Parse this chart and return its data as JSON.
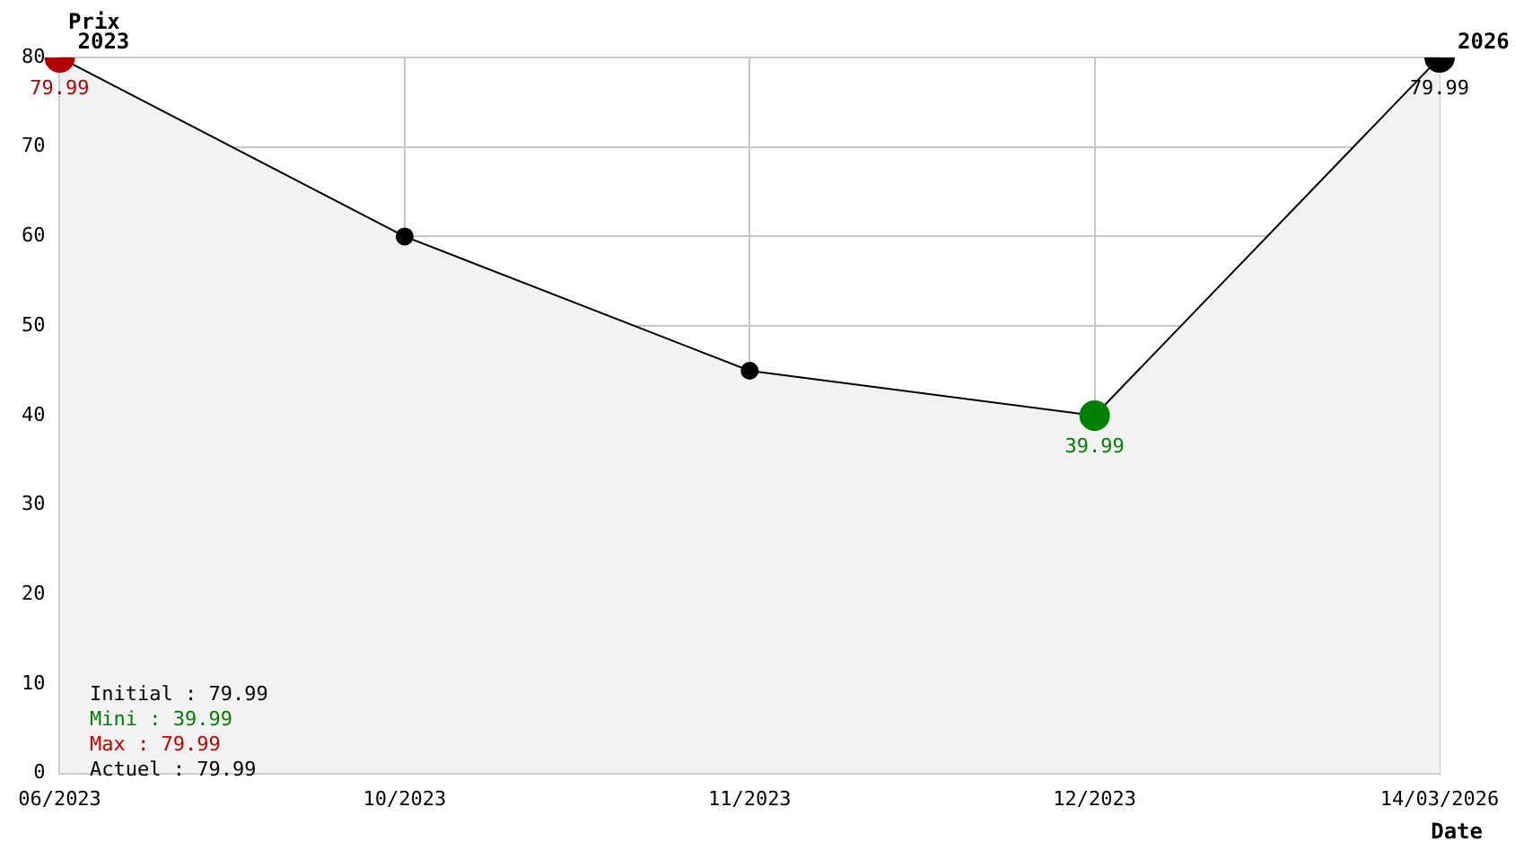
{
  "chart_data": {
    "type": "area",
    "xlabel": "Date",
    "ylabel": "Prix",
    "categories": [
      "06/2023",
      "10/2023",
      "11/2023",
      "12/2023",
      "14/03/2026"
    ],
    "series": [
      {
        "color": "#000000",
        "values": [
          79.99,
          60,
          45,
          39.99,
          79.99
        ],
        "colors": [
          "#b00000",
          "#000000",
          "#000000",
          "#008000",
          "#000000"
        ],
        "value_labels": [
          "79.99",
          null,
          null,
          "39.99",
          "79.99"
        ]
      }
    ],
    "ylim": [
      0,
      80
    ],
    "yticks": [
      0,
      10,
      20,
      30,
      40,
      50,
      60,
      70,
      80
    ],
    "grid": true,
    "marker": "circle",
    "annotations": [
      {
        "text": "2023",
        "x": "06/2023",
        "y": 79.99
      },
      {
        "text": "2026",
        "x": "14/03/2026",
        "y": 79.99
      },
      "Initial : 79.99",
      "Mini : 39.99",
      "Max : 79.99",
      "Actuel : 79.99"
    ]
  }
}
